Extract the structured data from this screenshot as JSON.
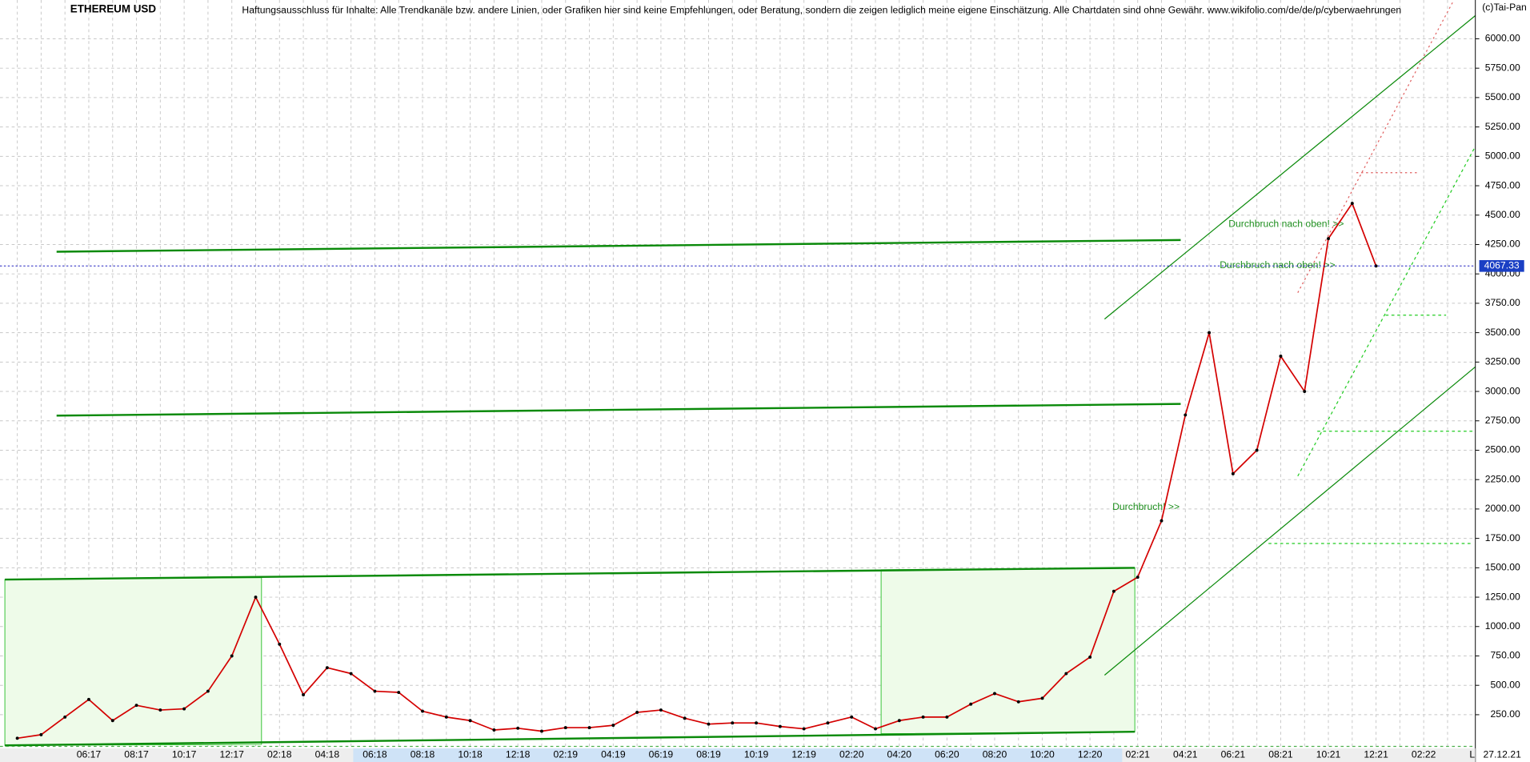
{
  "chart_data": {
    "type": "line",
    "title": "ETHEREUM USD",
    "subtitle": "Haftungsausschluss für Inhalte: Alle Trendkanäle bzw. andere Linien, oder Grafiken hier sind keine Empfehlungen, oder Beratung, sondern die zeigen lediglich meine eigene Einschätzung. Alle Chartdaten sind ohne Gewähr.  www.wikifolio.com/de/de/p/cyberwaehrungen",
    "credit": "(c)Tai-Pan",
    "date_label": "27.12.21",
    "corner_label": "L",
    "annotations": [
      "Durchbruch nach oben! >>",
      "Durchbruch nach oben! >>",
      "Durchbruch! >>"
    ],
    "categories": [
      null,
      null,
      null,
      "06:17",
      null,
      "08:17",
      null,
      "10:17",
      null,
      "12:17",
      null,
      "02:18",
      null,
      "04:18",
      null,
      "06:18",
      null,
      "08:18",
      null,
      "10:18",
      null,
      "12:18",
      null,
      "02:19",
      null,
      "04:19",
      null,
      "06:19",
      null,
      "08:19",
      null,
      "10:19",
      null,
      "12:19",
      null,
      "02:20",
      null,
      "04:20",
      null,
      "06:20",
      null,
      "08:20",
      null,
      "10:20",
      null,
      "12:20",
      null,
      "02:21",
      null,
      "04:21",
      null,
      "06:21",
      null,
      "08:21",
      null,
      "10:21",
      null,
      "12:21",
      null,
      "02:22",
      null
    ],
    "values": [
      50,
      80,
      230,
      380,
      200,
      330,
      290,
      300,
      450,
      750,
      1250,
      850,
      420,
      650,
      600,
      450,
      440,
      280,
      230,
      200,
      120,
      135,
      110,
      140,
      140,
      160,
      270,
      290,
      220,
      170,
      180,
      180,
      150,
      130,
      180,
      230,
      130,
      200,
      230,
      230,
      340,
      430,
      360,
      390,
      600,
      740,
      1300,
      1420,
      1900,
      2800,
      3500,
      2300,
      2500,
      3300,
      3000,
      4300,
      4600,
      4067.33,
      null,
      null,
      null
    ],
    "color": "#d40000",
    "ylim": [
      -17,
      6330
    ],
    "yticks": [
      {
        "value": 250,
        "label": "250.00"
      },
      {
        "value": 500,
        "label": "500.00"
      },
      {
        "value": 750,
        "label": "750.00"
      },
      {
        "value": 1000,
        "label": "1000.00"
      },
      {
        "value": 1250,
        "label": "1250.00"
      },
      {
        "value": 1500,
        "label": "1500.00"
      },
      {
        "value": 1750,
        "label": "1750.00"
      },
      {
        "value": 2000,
        "label": "2000.00"
      },
      {
        "value": 2250,
        "label": "2250.00"
      },
      {
        "value": 2500,
        "label": "2500.00"
      },
      {
        "value": 2750,
        "label": "2750.00"
      },
      {
        "value": 3000,
        "label": "3000.00"
      },
      {
        "value": 3250,
        "label": "3250.00"
      },
      {
        "value": 3500,
        "label": "3500.00"
      },
      {
        "value": 3750,
        "label": "3750.00"
      },
      {
        "value": 4000,
        "label": "4000.00"
      },
      {
        "value": 4250,
        "label": "4250.00"
      },
      {
        "value": 4500,
        "label": "4500.00"
      },
      {
        "value": 4750,
        "label": "4750.00"
      },
      {
        "value": 5000,
        "label": "5000.00"
      },
      {
        "value": 5250,
        "label": "5250.00"
      },
      {
        "value": 5500,
        "label": "5500.00"
      },
      {
        "value": 5750,
        "label": "5750.00"
      },
      {
        "value": 6000,
        "label": "6000.00"
      }
    ],
    "grid": true
  }
}
